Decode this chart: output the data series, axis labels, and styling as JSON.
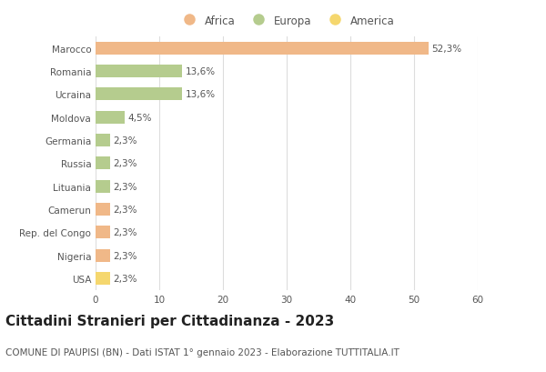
{
  "categories": [
    "Marocco",
    "Romania",
    "Ucraina",
    "Moldova",
    "Germania",
    "Russia",
    "Lituania",
    "Camerun",
    "Rep. del Congo",
    "Nigeria",
    "USA"
  ],
  "values": [
    52.3,
    13.6,
    13.6,
    4.5,
    2.3,
    2.3,
    2.3,
    2.3,
    2.3,
    2.3,
    2.3
  ],
  "labels": [
    "52,3%",
    "13,6%",
    "13,6%",
    "4,5%",
    "2,3%",
    "2,3%",
    "2,3%",
    "2,3%",
    "2,3%",
    "2,3%",
    "2,3%"
  ],
  "colors": [
    "#f0b888",
    "#b5cc8e",
    "#b5cc8e",
    "#b5cc8e",
    "#b5cc8e",
    "#b5cc8e",
    "#b5cc8e",
    "#f0b888",
    "#f0b888",
    "#f0b888",
    "#f5d76e"
  ],
  "legend_labels": [
    "Africa",
    "Europa",
    "America"
  ],
  "legend_colors": [
    "#f0b888",
    "#b5cc8e",
    "#f5d76e"
  ],
  "title": "Cittadini Stranieri per Cittadinanza - 2023",
  "subtitle": "COMUNE DI PAUPISI (BN) - Dati ISTAT 1° gennaio 2023 - Elaborazione TUTTITALIA.IT",
  "xlim": [
    0,
    60
  ],
  "xticks": [
    0,
    10,
    20,
    30,
    40,
    50,
    60
  ],
  "background_color": "#ffffff",
  "grid_color": "#dddddd",
  "title_fontsize": 11,
  "subtitle_fontsize": 7.5,
  "label_fontsize": 7.5,
  "tick_fontsize": 7.5,
  "legend_fontsize": 8.5,
  "bar_height": 0.55
}
